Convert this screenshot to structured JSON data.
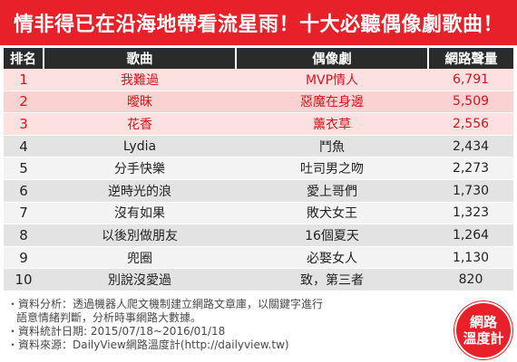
{
  "title": "情非得已在沿海地帶看流星雨！十大必聽偶像劇歌曲！",
  "table": {
    "headers": [
      "排名",
      "歌曲",
      "偶像劇",
      "網路聲量"
    ],
    "rows": [
      {
        "rank": "1",
        "song": "我難過",
        "drama": "MVP情人",
        "volume": "6,791"
      },
      {
        "rank": "2",
        "song": "曖昧",
        "drama": "惡魔在身邊",
        "volume": "5,509"
      },
      {
        "rank": "3",
        "song": "花香",
        "drama": "薰衣草",
        "volume": "2,556"
      },
      {
        "rank": "4",
        "song": "Lydia",
        "drama": "鬥魚",
        "volume": "2,434"
      },
      {
        "rank": "5",
        "song": "分手快樂",
        "drama": "吐司男之吻",
        "volume": "2,273"
      },
      {
        "rank": "6",
        "song": "逆時光的浪",
        "drama": "愛上哥們",
        "volume": "1,730"
      },
      {
        "rank": "7",
        "song": "沒有如果",
        "drama": "敗犬女王",
        "volume": "1,323"
      },
      {
        "rank": "8",
        "song": "以後別做朋友",
        "drama": "16個夏天",
        "volume": "1,264"
      },
      {
        "rank": "9",
        "song": "兜圈",
        "drama": "必娶女人",
        "volume": "1,130"
      },
      {
        "rank": "10",
        "song": "別說沒愛過",
        "drama": "致，第三者",
        "volume": "820"
      }
    ]
  },
  "notes": {
    "analysis_1": "・資料分析：透過機器人爬文機制建立網路文章庫，以關鍵字進行",
    "analysis_2": "語意情緒判斷，分析時事網路大數據。",
    "period": "・資料統計日期: 2015/07/18~2016/01/18",
    "source": "・資料來源：DailyView網路溫度計(http://dailyview.tw)"
  },
  "logo": {
    "line1": "網路",
    "line2": "溫度計"
  },
  "colors": {
    "brand_red": "#e8202a",
    "header_dark": "#2b2b2b",
    "top3_text": "#d8141f"
  }
}
